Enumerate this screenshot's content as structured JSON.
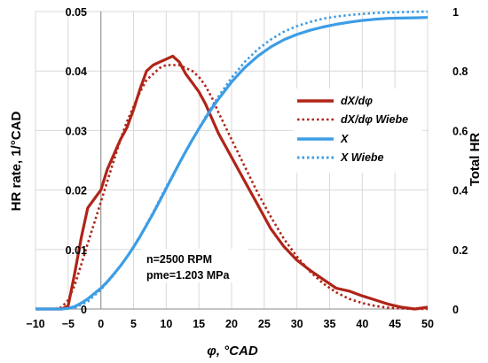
{
  "chart_data": {
    "type": "line",
    "xlabel": "φ, °CAD",
    "ylabel_left": "HR rate, 1/°CAD",
    "ylabel_right": "Total HR",
    "xlim": [
      -10,
      50
    ],
    "ylim_left": [
      0,
      0.05
    ],
    "ylim_right": [
      0,
      1
    ],
    "x_ticks": [
      "−10",
      "−5",
      "0",
      "5",
      "10",
      "15",
      "20",
      "25",
      "30",
      "35",
      "40",
      "45",
      "50"
    ],
    "y_left_ticks": [
      "0",
      "0.01",
      "0.02",
      "0.03",
      "0.04",
      "0.05"
    ],
    "y_right_ticks": [
      "0",
      "0.2",
      "0.4",
      "0.6",
      "0.8",
      "1"
    ],
    "grid": true,
    "legend_position": "right",
    "annotation": [
      "n=2500 RPM",
      "pme=1.203 MPa"
    ],
    "series": [
      {
        "name": "dX/dφ",
        "axis": "left",
        "color": "#b02418",
        "style": "solid",
        "x": [
          -10,
          -6,
          -5,
          -4,
          -3,
          -2,
          -1,
          0,
          1,
          2,
          3,
          4,
          5,
          6,
          7,
          8,
          9,
          10,
          11,
          12,
          13,
          14,
          15,
          16,
          17,
          18,
          20,
          22,
          24,
          26,
          28,
          30,
          32,
          34,
          36,
          38,
          40,
          42,
          44,
          46,
          48,
          50
        ],
        "y": [
          0,
          0,
          0.0005,
          0.006,
          0.012,
          0.017,
          0.0185,
          0.02,
          0.0235,
          0.026,
          0.0285,
          0.0305,
          0.0335,
          0.037,
          0.04,
          0.041,
          0.0415,
          0.042,
          0.0425,
          0.0415,
          0.0395,
          0.038,
          0.0365,
          0.0345,
          0.032,
          0.0295,
          0.0255,
          0.0215,
          0.0175,
          0.0135,
          0.0105,
          0.0082,
          0.0065,
          0.005,
          0.0035,
          0.003,
          0.0022,
          0.0015,
          0.0008,
          0.0003,
          0.0,
          0.0003
        ]
      },
      {
        "name": "dX/dφ Wiebe",
        "axis": "left",
        "color": "#b02418",
        "style": "dotted",
        "x": [
          -10,
          -7,
          -6,
          -5,
          -4,
          -3,
          -2,
          -1,
          0,
          1,
          2,
          3,
          4,
          5,
          6,
          7,
          8,
          9,
          10,
          11,
          12,
          13,
          14,
          15,
          16,
          17,
          18,
          20,
          22,
          24,
          26,
          28,
          30,
          32,
          34,
          36,
          38,
          40,
          42,
          44,
          46,
          48,
          50
        ],
        "y": [
          0,
          0,
          0.0003,
          0.0015,
          0.004,
          0.0075,
          0.011,
          0.0145,
          0.018,
          0.0215,
          0.025,
          0.0285,
          0.0315,
          0.034,
          0.0365,
          0.0385,
          0.0395,
          0.0405,
          0.041,
          0.041,
          0.041,
          0.0405,
          0.04,
          0.039,
          0.0375,
          0.0355,
          0.033,
          0.0285,
          0.024,
          0.0195,
          0.0155,
          0.0118,
          0.0088,
          0.0063,
          0.0043,
          0.0028,
          0.0017,
          0.001,
          0.0005,
          0.0002,
          0.0001,
          0,
          0
        ]
      },
      {
        "name": "X",
        "axis": "right",
        "color": "#3d9de5",
        "style": "solid",
        "x": [
          -10,
          -6,
          -5,
          -4,
          -3,
          -2,
          -1,
          0,
          1,
          2,
          3,
          4,
          5,
          6,
          7,
          8,
          9,
          10,
          11,
          12,
          13,
          14,
          15,
          16,
          17,
          18,
          20,
          22,
          24,
          26,
          28,
          30,
          32,
          34,
          36,
          38,
          40,
          42,
          44,
          46,
          48,
          50
        ],
        "y": [
          0,
          0,
          0.002,
          0.008,
          0.02,
          0.034,
          0.052,
          0.07,
          0.092,
          0.118,
          0.145,
          0.175,
          0.208,
          0.244,
          0.282,
          0.321,
          0.363,
          0.405,
          0.448,
          0.49,
          0.53,
          0.569,
          0.606,
          0.641,
          0.675,
          0.706,
          0.763,
          0.811,
          0.85,
          0.881,
          0.905,
          0.923,
          0.937,
          0.948,
          0.957,
          0.964,
          0.97,
          0.974,
          0.977,
          0.978,
          0.979,
          0.98
        ]
      },
      {
        "name": "X Wiebe",
        "axis": "right",
        "color": "#3d9de5",
        "style": "dotted",
        "x": [
          -10,
          -6,
          -4,
          -2,
          0,
          2,
          4,
          6,
          8,
          10,
          12,
          14,
          16,
          18,
          20,
          22,
          24,
          26,
          28,
          30,
          32,
          34,
          36,
          38,
          40,
          42,
          44,
          46,
          48,
          50
        ],
        "y": [
          0,
          0,
          0.004,
          0.025,
          0.065,
          0.115,
          0.175,
          0.245,
          0.325,
          0.41,
          0.49,
          0.57,
          0.645,
          0.715,
          0.777,
          0.83,
          0.873,
          0.906,
          0.932,
          0.951,
          0.965,
          0.976,
          0.983,
          0.988,
          0.992,
          0.995,
          0.997,
          0.998,
          0.999,
          1.0
        ]
      }
    ]
  }
}
